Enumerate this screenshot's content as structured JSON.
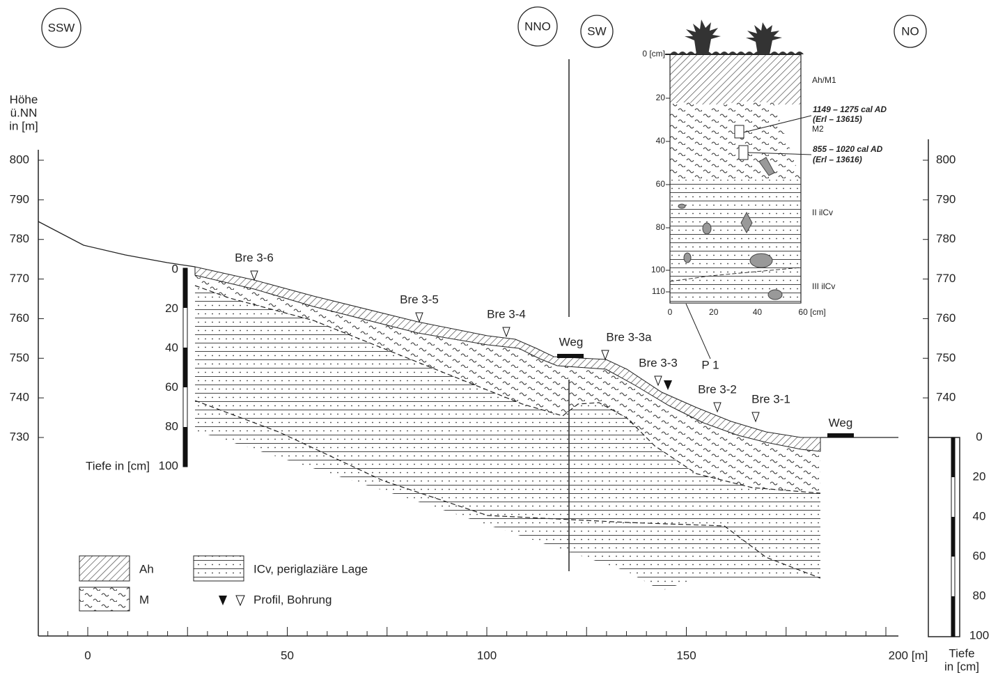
{
  "directions": [
    "SSW",
    "NNO",
    "SW",
    "NO"
  ],
  "y_axis": {
    "title": [
      "Höhe",
      "ü.NN",
      "in [m]"
    ],
    "ticks": [
      800,
      790,
      780,
      770,
      760,
      750,
      740,
      730
    ]
  },
  "y2_axis": {
    "ticks": [
      800,
      790,
      780,
      770,
      760,
      750,
      740
    ]
  },
  "x_axis": {
    "ticks": [
      "0",
      "50",
      "100",
      "150",
      "200 [m]"
    ]
  },
  "depth_left": {
    "ticks": [
      0,
      20,
      40,
      60,
      80,
      100
    ],
    "title": "Tiefe in [cm]"
  },
  "depth_right": {
    "ticks": [
      0,
      20,
      40,
      60,
      80,
      100
    ],
    "title": [
      "Tiefe",
      "in [cm]"
    ]
  },
  "boreholes": [
    "Bre 3-6",
    "Bre 3-5",
    "Bre 3-4",
    "Bre 3-3a",
    "Bre 3-3",
    "Bre 3-2",
    "Bre 3-1"
  ],
  "profile": "P 1",
  "paths": [
    "Weg",
    "Weg"
  ],
  "legend": [
    "Ah",
    "M",
    "ICv, periglaziäre Lage",
    "Profil, Bohrung"
  ],
  "inset": {
    "y_ticks": [
      "0 [cm]",
      "20",
      "40",
      "60",
      "80",
      "100",
      "110"
    ],
    "x_ticks": [
      "0",
      "20",
      "40",
      "60 [cm]"
    ],
    "horizons": [
      "Ah/M1",
      "M2",
      "II ilCv",
      "III ilCv"
    ],
    "dates": [
      {
        "age": "1149 – 1275 cal AD",
        "lab": "(Erl – 13615)"
      },
      {
        "age": "855 – 1020 cal AD",
        "lab": "(Erl – 13616)"
      }
    ]
  }
}
